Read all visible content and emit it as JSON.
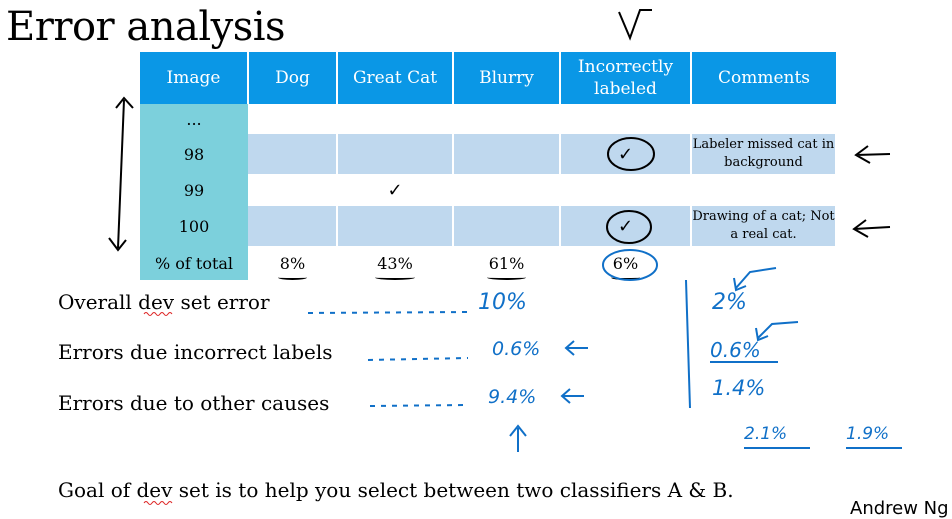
{
  "title": "Error analysis",
  "table": {
    "headers": [
      "Image",
      "Dog",
      "Great Cat",
      "Blurry",
      "Incorrectly labeled",
      "Comments"
    ],
    "rows": [
      {
        "image": "...",
        "dog": "",
        "great_cat": "",
        "blurry": "",
        "incorrect": "",
        "comment": ""
      },
      {
        "image": "98",
        "dog": "",
        "great_cat": "",
        "blurry": "",
        "incorrect": "✓",
        "comment": "Labeler missed cat in background"
      },
      {
        "image": "99",
        "dog": "",
        "great_cat": "✓",
        "blurry": "",
        "incorrect": "",
        "comment": ""
      },
      {
        "image": "100",
        "dog": "",
        "great_cat": "",
        "blurry": "",
        "incorrect": "✓",
        "comment": "Drawing of a cat; Not a real cat."
      }
    ],
    "total_label": "% of total",
    "totals": {
      "dog": "8%",
      "great_cat": "43%",
      "blurry": "61%",
      "incorrect": "6%"
    }
  },
  "errors": {
    "overall_label": "Overall dev set error",
    "overall_value": "10%",
    "incorrect_label": "Errors due incorrect labels",
    "incorrect_value": "0.6%",
    "other_label": "Errors due to other causes",
    "other_value": "9.4%"
  },
  "alt_column": {
    "overall": "2%",
    "incorrect": "0.6%",
    "other": "1.4%",
    "classifier_a": "2.1%",
    "classifier_b": "1.9%"
  },
  "goal_text": "Goal of dev set is to help you select between two classifiers A & B.",
  "signature": "Andrew Ng",
  "colors": {
    "header": "#0a97e6",
    "image_col": "#7cd0dc",
    "shade_row": "#bfd8ee",
    "ink": "#1070c8"
  }
}
